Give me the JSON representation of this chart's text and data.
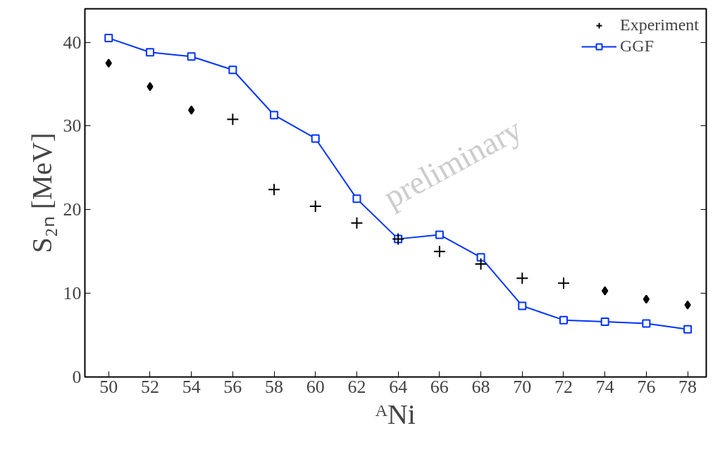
{
  "chart_data": {
    "type": "scatter",
    "xlabel": "ᴬNi",
    "ylabel": "S₂ₙ [MeV]",
    "xlim": [
      48.85,
      78.9
    ],
    "ylim": [
      0,
      44
    ],
    "xticks": [
      50,
      52,
      54,
      56,
      58,
      60,
      62,
      64,
      66,
      68,
      70,
      72,
      74,
      76,
      78
    ],
    "yticks": [
      0,
      10,
      20,
      30,
      40
    ],
    "grid": false,
    "legend": "top right",
    "series": [
      {
        "name": "Experiment",
        "marker": "cross",
        "color": "#000000",
        "x": [
          56,
          58,
          60,
          62,
          64,
          66,
          68,
          70,
          72
        ],
        "values": [
          30.8,
          22.4,
          20.4,
          18.4,
          16.5,
          15.0,
          13.5,
          11.8,
          11.2
        ]
      },
      {
        "marker": "diamond",
        "color": "#000000",
        "x": [
          50,
          52,
          54,
          74,
          76,
          78
        ],
        "values": [
          37.5,
          34.7,
          31.9,
          10.3,
          9.3,
          8.6
        ]
      },
      {
        "name": "GGF",
        "type": "line",
        "marker": "square",
        "color": "#0033ff",
        "x": [
          50,
          52,
          54,
          56,
          58,
          60,
          62,
          64,
          66,
          68,
          70,
          72,
          74,
          76,
          78
        ],
        "values": [
          40.5,
          38.8,
          38.3,
          36.7,
          31.3,
          28.5,
          21.3,
          16.5,
          17.0,
          14.3,
          8.5,
          6.8,
          6.6,
          6.4,
          5.7
        ]
      }
    ],
    "annotations": [
      "preliminary"
    ]
  }
}
